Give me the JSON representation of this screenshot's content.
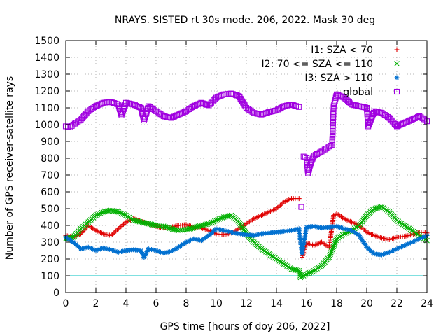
{
  "chart_data": {
    "type": "scatter",
    "title": "NRAYS. SISTED rt 30s mode. 206, 2022. Mask 30 deg",
    "xlabel": "GPS time [hours of doy 206, 2022]",
    "ylabel": "Number of GPS receiver-satellite rays",
    "xlim": [
      0,
      24
    ],
    "ylim": [
      0,
      1500
    ],
    "xticks": [
      "0",
      "2",
      "4",
      "6",
      "8",
      "10",
      "12",
      "14",
      "16",
      "18",
      "20",
      "22",
      "24"
    ],
    "yticks": [
      "0",
      "100",
      "200",
      "300",
      "400",
      "500",
      "600",
      "700",
      "800",
      "900",
      "1000",
      "1100",
      "1200",
      "1300",
      "1400",
      "1500"
    ],
    "grid": true,
    "legend_position": "top-right",
    "reference_line": {
      "y": 100,
      "color": "#00c0c0"
    },
    "series": [
      {
        "name": "I1: SZA < 70",
        "marker": "+",
        "color": "#e00000",
        "points": [
          [
            0,
            340
          ],
          [
            0.5,
            330
          ],
          [
            1,
            350
          ],
          [
            1.5,
            400
          ],
          [
            2,
            370
          ],
          [
            2.5,
            350
          ],
          [
            3,
            340
          ],
          [
            3.5,
            380
          ],
          [
            4,
            420
          ],
          [
            4.5,
            440
          ],
          [
            5,
            425
          ],
          [
            5.5,
            410
          ],
          [
            6,
            395
          ],
          [
            6.5,
            385
          ],
          [
            7,
            390
          ],
          [
            7.5,
            400
          ],
          [
            8,
            405
          ],
          [
            8.5,
            390
          ],
          [
            9,
            385
          ],
          [
            9.5,
            370
          ],
          [
            10,
            350
          ],
          [
            10.5,
            345
          ],
          [
            11,
            355
          ],
          [
            11.5,
            380
          ],
          [
            12,
            410
          ],
          [
            12.5,
            440
          ],
          [
            13,
            460
          ],
          [
            13.5,
            480
          ],
          [
            14,
            500
          ],
          [
            14.5,
            540
          ],
          [
            15,
            560
          ],
          [
            15.5,
            560
          ],
          [
            15.7,
            210
          ],
          [
            16,
            295
          ],
          [
            16.5,
            280
          ],
          [
            17,
            300
          ],
          [
            17.5,
            270
          ],
          [
            17.8,
            460
          ],
          [
            18,
            470
          ],
          [
            18.5,
            440
          ],
          [
            19,
            420
          ],
          [
            19.5,
            400
          ],
          [
            20,
            360
          ],
          [
            20.5,
            340
          ],
          [
            21,
            325
          ],
          [
            21.5,
            315
          ],
          [
            22,
            330
          ],
          [
            22.5,
            335
          ],
          [
            23,
            345
          ],
          [
            23.5,
            360
          ],
          [
            24,
            355
          ]
        ]
      },
      {
        "name": "I2: 70 <= SZA <= 110",
        "marker": "x",
        "color": "#00b000",
        "points": [
          [
            0,
            320
          ],
          [
            0.5,
            330
          ],
          [
            1,
            380
          ],
          [
            1.5,
            420
          ],
          [
            2,
            460
          ],
          [
            2.5,
            480
          ],
          [
            3,
            490
          ],
          [
            3.5,
            480
          ],
          [
            4,
            460
          ],
          [
            4.5,
            430
          ],
          [
            5,
            420
          ],
          [
            5.5,
            410
          ],
          [
            6,
            400
          ],
          [
            6.5,
            395
          ],
          [
            7,
            380
          ],
          [
            7.5,
            370
          ],
          [
            8,
            375
          ],
          [
            8.5,
            385
          ],
          [
            9,
            400
          ],
          [
            9.5,
            410
          ],
          [
            10,
            430
          ],
          [
            10.5,
            450
          ],
          [
            11,
            460
          ],
          [
            11.5,
            420
          ],
          [
            12,
            350
          ],
          [
            12.5,
            300
          ],
          [
            13,
            260
          ],
          [
            13.5,
            230
          ],
          [
            14,
            200
          ],
          [
            14.5,
            170
          ],
          [
            15,
            140
          ],
          [
            15.5,
            130
          ],
          [
            15.6,
            90
          ],
          [
            16,
            110
          ],
          [
            16.5,
            130
          ],
          [
            17,
            160
          ],
          [
            17.5,
            210
          ],
          [
            18,
            320
          ],
          [
            18.5,
            350
          ],
          [
            19,
            370
          ],
          [
            19.5,
            400
          ],
          [
            20,
            460
          ],
          [
            20.5,
            500
          ],
          [
            21,
            510
          ],
          [
            21.5,
            480
          ],
          [
            22,
            430
          ],
          [
            22.5,
            400
          ],
          [
            23,
            370
          ],
          [
            23.5,
            340
          ],
          [
            24,
            310
          ]
        ]
      },
      {
        "name": "I3: SZA > 110",
        "marker": "*",
        "color": "#0070d0",
        "points": [
          [
            0,
            330
          ],
          [
            0.5,
            300
          ],
          [
            1,
            260
          ],
          [
            1.5,
            270
          ],
          [
            2,
            250
          ],
          [
            2.5,
            265
          ],
          [
            3,
            255
          ],
          [
            3.5,
            240
          ],
          [
            4,
            250
          ],
          [
            4.5,
            255
          ],
          [
            5,
            250
          ],
          [
            5.2,
            210
          ],
          [
            5.5,
            260
          ],
          [
            6,
            250
          ],
          [
            6.5,
            235
          ],
          [
            7,
            245
          ],
          [
            7.5,
            270
          ],
          [
            8,
            300
          ],
          [
            8.5,
            320
          ],
          [
            9,
            310
          ],
          [
            9.5,
            340
          ],
          [
            10,
            380
          ],
          [
            10.5,
            370
          ],
          [
            11,
            360
          ],
          [
            11.5,
            350
          ],
          [
            12,
            345
          ],
          [
            12.5,
            340
          ],
          [
            13,
            350
          ],
          [
            13.5,
            355
          ],
          [
            14,
            360
          ],
          [
            14.5,
            365
          ],
          [
            15,
            370
          ],
          [
            15.5,
            380
          ],
          [
            15.7,
            230
          ],
          [
            16,
            390
          ],
          [
            16.5,
            395
          ],
          [
            17,
            385
          ],
          [
            17.5,
            390
          ],
          [
            18,
            395
          ],
          [
            18.5,
            380
          ],
          [
            19,
            370
          ],
          [
            19.5,
            340
          ],
          [
            20,
            270
          ],
          [
            20.5,
            230
          ],
          [
            21,
            225
          ],
          [
            21.5,
            240
          ],
          [
            22,
            260
          ],
          [
            22.5,
            280
          ],
          [
            23,
            300
          ],
          [
            23.5,
            320
          ],
          [
            24,
            340
          ]
        ]
      },
      {
        "name": "global",
        "marker": "square",
        "color": "#a000e0",
        "points": [
          [
            0,
            990
          ],
          [
            0.3,
            985
          ],
          [
            0.5,
            1000
          ],
          [
            1,
            1030
          ],
          [
            1.5,
            1080
          ],
          [
            2,
            1110
          ],
          [
            2.5,
            1130
          ],
          [
            3,
            1135
          ],
          [
            3.5,
            1120
          ],
          [
            3.7,
            1055
          ],
          [
            4,
            1130
          ],
          [
            4.5,
            1120
          ],
          [
            5,
            1100
          ],
          [
            5.2,
            1025
          ],
          [
            5.5,
            1110
          ],
          [
            6,
            1080
          ],
          [
            6.5,
            1050
          ],
          [
            7,
            1040
          ],
          [
            7.5,
            1060
          ],
          [
            8,
            1080
          ],
          [
            8.5,
            1110
          ],
          [
            9,
            1130
          ],
          [
            9.5,
            1115
          ],
          [
            10,
            1160
          ],
          [
            10.5,
            1180
          ],
          [
            11,
            1185
          ],
          [
            11.5,
            1170
          ],
          [
            12,
            1100
          ],
          [
            12.5,
            1070
          ],
          [
            13,
            1060
          ],
          [
            13.5,
            1075
          ],
          [
            14,
            1085
          ],
          [
            14.5,
            1110
          ],
          [
            15,
            1120
          ],
          [
            15.5,
            1105
          ],
          [
            15.65,
            510
          ],
          [
            15.8,
            810
          ],
          [
            16,
            800
          ],
          [
            16.1,
            710
          ],
          [
            16.3,
            780
          ],
          [
            16.5,
            815
          ],
          [
            17,
            840
          ],
          [
            17.5,
            870
          ],
          [
            17.7,
            880
          ],
          [
            17.8,
            1110
          ],
          [
            18,
            1180
          ],
          [
            18.5,
            1160
          ],
          [
            19,
            1120
          ],
          [
            19.5,
            1110
          ],
          [
            20,
            1100
          ],
          [
            20.1,
            990
          ],
          [
            20.5,
            1080
          ],
          [
            21,
            1070
          ],
          [
            21.5,
            1040
          ],
          [
            22,
            990
          ],
          [
            22.5,
            1010
          ],
          [
            23,
            1030
          ],
          [
            23.5,
            1050
          ],
          [
            24,
            1020
          ]
        ]
      }
    ]
  }
}
